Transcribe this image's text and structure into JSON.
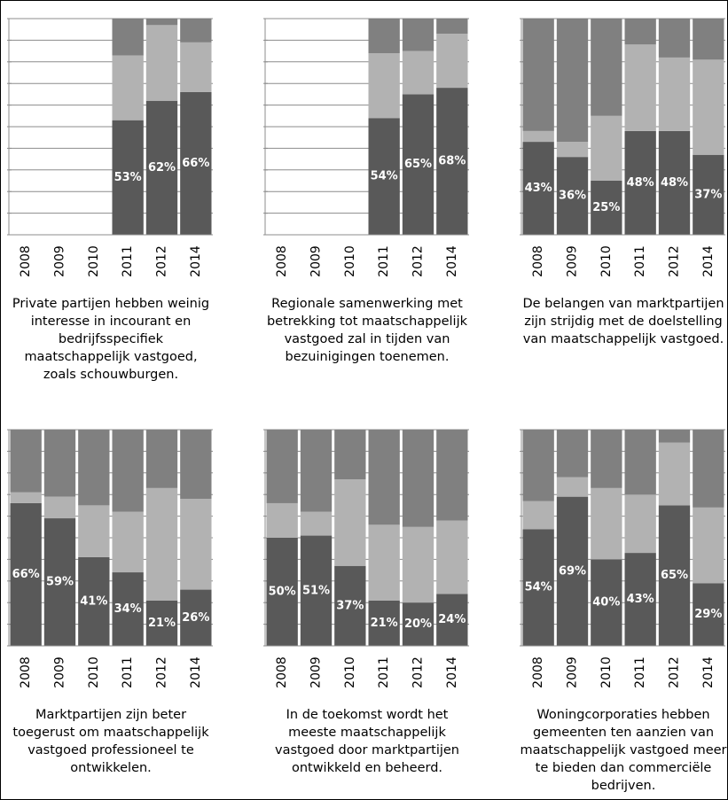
{
  "chart_data": [
    {
      "type": "stacked_bar",
      "title": "Private partijen hebben weinig interesse in incourant en bedrijfsspecifiek maatschappelijk vastgoed, zoals schouwburgen.",
      "categories": [
        "2008",
        "2009",
        "2010",
        "2011",
        "2012",
        "2014"
      ],
      "ylim": [
        0,
        100
      ],
      "yticks": [
        0,
        10,
        20,
        30,
        40,
        50,
        60,
        70,
        80,
        90,
        100
      ],
      "grid": true,
      "series": [
        {
          "color": "#595959",
          "values": [
            null,
            null,
            null,
            53,
            62,
            66
          ],
          "value_labels": [
            null,
            null,
            null,
            "53%",
            "62%",
            "66%"
          ]
        },
        {
          "color": "#b2b2b2",
          "values": [
            null,
            null,
            null,
            30,
            35,
            23
          ]
        },
        {
          "color": "#808080",
          "values": [
            null,
            null,
            null,
            17,
            3,
            11
          ]
        }
      ]
    },
    {
      "type": "stacked_bar",
      "title": "Regionale samenwerking met betrekking tot maatschappelijk vastgoed zal in tijden van bezuinigingen toenemen.",
      "categories": [
        "2008",
        "2009",
        "2010",
        "2011",
        "2012",
        "2014"
      ],
      "ylim": [
        0,
        100
      ],
      "yticks": [
        0,
        10,
        20,
        30,
        40,
        50,
        60,
        70,
        80,
        90,
        100
      ],
      "grid": true,
      "series": [
        {
          "color": "#595959",
          "values": [
            null,
            null,
            null,
            54,
            65,
            68
          ],
          "value_labels": [
            null,
            null,
            null,
            "54%",
            "65%",
            "68%"
          ]
        },
        {
          "color": "#b2b2b2",
          "values": [
            null,
            null,
            null,
            30,
            20,
            25
          ]
        },
        {
          "color": "#808080",
          "values": [
            null,
            null,
            null,
            16,
            15,
            7
          ]
        }
      ]
    },
    {
      "type": "stacked_bar",
      "title": "De belangen van marktpartijen zijn strijdig met de doelstelling van maatschappelijk vastgoed.",
      "categories": [
        "2008",
        "2009",
        "2010",
        "2011",
        "2012",
        "2014"
      ],
      "ylim": [
        0,
        100
      ],
      "yticks": [
        0,
        10,
        20,
        30,
        40,
        50,
        60,
        70,
        80,
        90,
        100
      ],
      "grid": true,
      "series": [
        {
          "color": "#595959",
          "values": [
            43,
            36,
            25,
            48,
            48,
            37
          ],
          "value_labels": [
            "43%",
            "36%",
            "25%",
            "48%",
            "48%",
            "37%"
          ]
        },
        {
          "color": "#b2b2b2",
          "values": [
            5,
            7,
            30,
            40,
            34,
            44
          ]
        },
        {
          "color": "#808080",
          "values": [
            52,
            57,
            45,
            12,
            18,
            19
          ]
        }
      ]
    },
    {
      "type": "stacked_bar",
      "title": "Marktpartijen zijn beter toegerust om maatschappelijk vastgoed professioneel te ontwikkelen.",
      "categories": [
        "2008",
        "2009",
        "2010",
        "2011",
        "2012",
        "2014"
      ],
      "ylim": [
        0,
        100
      ],
      "yticks": [
        0,
        10,
        20,
        30,
        40,
        50,
        60,
        70,
        80,
        90,
        100
      ],
      "grid": true,
      "series": [
        {
          "color": "#595959",
          "values": [
            66,
            59,
            41,
            34,
            21,
            26
          ],
          "value_labels": [
            "66%",
            "59%",
            "41%",
            "34%",
            "21%",
            "26%"
          ]
        },
        {
          "color": "#b2b2b2",
          "values": [
            5,
            10,
            24,
            28,
            52,
            42
          ]
        },
        {
          "color": "#808080",
          "values": [
            29,
            31,
            35,
            38,
            27,
            32
          ]
        }
      ]
    },
    {
      "type": "stacked_bar",
      "title": "In de toekomst wordt het meeste maatschappelijk vastgoed door marktpartijen ontwikkeld en beheerd.",
      "categories": [
        "2008",
        "2009",
        "2010",
        "2011",
        "2012",
        "2014"
      ],
      "ylim": [
        0,
        100
      ],
      "yticks": [
        0,
        10,
        20,
        30,
        40,
        50,
        60,
        70,
        80,
        90,
        100
      ],
      "grid": true,
      "series": [
        {
          "color": "#595959",
          "values": [
            50,
            51,
            37,
            21,
            20,
            24
          ],
          "value_labels": [
            "50%",
            "51%",
            "37%",
            "21%",
            "20%",
            "24%"
          ]
        },
        {
          "color": "#b2b2b2",
          "values": [
            16,
            11,
            40,
            35,
            35,
            34
          ]
        },
        {
          "color": "#808080",
          "values": [
            34,
            38,
            23,
            44,
            45,
            42
          ]
        }
      ]
    },
    {
      "type": "stacked_bar",
      "title": "Woningcorporaties hebben gemeenten ten aanzien van maatschappelijk vastgoed meer te bieden dan commerciële bedrijven.",
      "categories": [
        "2008",
        "2009",
        "2010",
        "2011",
        "2012",
        "2014"
      ],
      "ylim": [
        0,
        100
      ],
      "yticks": [
        0,
        10,
        20,
        30,
        40,
        50,
        60,
        70,
        80,
        90,
        100
      ],
      "grid": true,
      "series": [
        {
          "color": "#595959",
          "values": [
            54,
            69,
            40,
            43,
            65,
            29
          ],
          "value_labels": [
            "54%",
            "69%",
            "40%",
            "43%",
            "65%",
            "29%"
          ]
        },
        {
          "color": "#b2b2b2",
          "values": [
            13,
            9,
            33,
            27,
            29,
            35
          ]
        },
        {
          "color": "#808080",
          "values": [
            33,
            22,
            27,
            30,
            6,
            36
          ]
        }
      ]
    }
  ]
}
